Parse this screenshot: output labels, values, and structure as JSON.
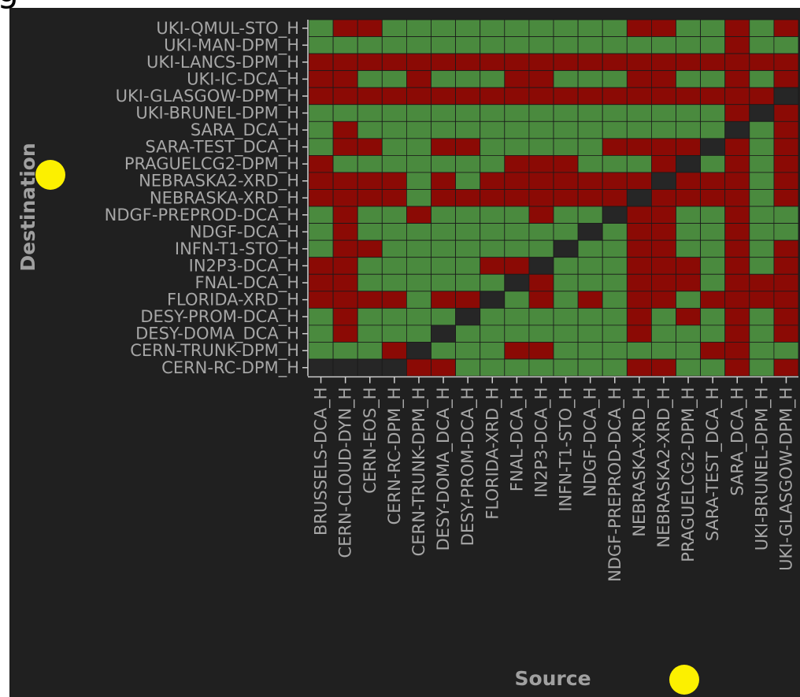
{
  "stray_glyph": "g",
  "colors": {
    "panel_bg": "#202020",
    "ok": "#4a8a3e",
    "fail": "#8b0a05",
    "diag": "#262626",
    "label": "#a6a6a6",
    "axis_title": "#a0a0a0",
    "grid": "#1a1a1a",
    "marker": "#fcf000"
  },
  "markers": [
    "yellow-dot",
    "yellow-dot"
  ],
  "chart_data": {
    "type": "heatmap",
    "xlabel": "Source",
    "ylabel": "Destination",
    "legend": "none",
    "value_legend": {
      "1": "ok (green)",
      "0": "failed (red)",
      "-1": "no test (dark)"
    },
    "x": [
      "BRUSSELS-DCA_H",
      "CERN-CLOUD-DYN_H",
      "CERN-EOS_H",
      "CERN-RC-DPM_H",
      "CERN-TRUNK-DPM_H",
      "DESY-DOMA_DCA_H",
      "DESY-PROM-DCA_H",
      "FLORIDA-XRD_H",
      "FNAL-DCA_H",
      "IN2P3-DCA_H",
      "INFN-T1-STO_H",
      "NDGF-DCA_H",
      "NDGF-PREPROD-DCA_H",
      "NEBRASKA-XRD_H",
      "NEBRASKA2-XRD_H",
      "PRAGUELCG2-DPM_H",
      "SARA-TEST_DCA_H",
      "SARA_DCA_H",
      "UKI-BRUNEL-DPM_H",
      "UKI-GLASGOW-DPM_H"
    ],
    "y": [
      "UKI-QMUL-STO_H",
      "UKI-MAN-DPM_H",
      "UKI-LANCS-DPM_H",
      "UKI-IC-DCA_H",
      "UKI-GLASGOW-DPM_H",
      "UKI-BRUNEL-DPM_H",
      "SARA_DCA_H",
      "SARA-TEST_DCA_H",
      "PRAGUELCG2-DPM_H",
      "NEBRASKA2-XRD_H",
      "NEBRASKA-XRD_H",
      "NDGF-PREPROD-DCA_H",
      "NDGF-DCA_H",
      "INFN-T1-STO_H",
      "IN2P3-DCA_H",
      "FNAL-DCA_H",
      "FLORIDA-XRD_H",
      "DESY-PROM-DCA_H",
      "DESY-DOMA_DCA_H",
      "CERN-TRUNK-DPM_H",
      "CERN-RC-DPM_H"
    ],
    "values": [
      [
        1,
        0,
        0,
        1,
        1,
        1,
        1,
        1,
        1,
        1,
        1,
        1,
        1,
        0,
        0,
        1,
        1,
        0,
        1,
        0
      ],
      [
        1,
        1,
        1,
        1,
        1,
        1,
        1,
        1,
        1,
        1,
        1,
        1,
        1,
        1,
        1,
        1,
        1,
        0,
        1,
        1
      ],
      [
        0,
        0,
        0,
        0,
        0,
        0,
        0,
        0,
        0,
        0,
        0,
        0,
        0,
        0,
        0,
        0,
        0,
        0,
        0,
        0
      ],
      [
        0,
        0,
        1,
        1,
        0,
        1,
        1,
        1,
        0,
        0,
        1,
        1,
        1,
        0,
        0,
        1,
        1,
        0,
        1,
        0
      ],
      [
        0,
        0,
        0,
        0,
        0,
        0,
        0,
        0,
        0,
        0,
        0,
        0,
        0,
        0,
        0,
        0,
        0,
        0,
        0,
        -1
      ],
      [
        1,
        1,
        1,
        1,
        1,
        1,
        1,
        1,
        1,
        1,
        1,
        1,
        1,
        1,
        1,
        1,
        1,
        0,
        -1,
        0
      ],
      [
        1,
        0,
        1,
        1,
        1,
        1,
        1,
        1,
        1,
        1,
        1,
        1,
        1,
        1,
        1,
        1,
        1,
        -1,
        1,
        0
      ],
      [
        1,
        0,
        0,
        1,
        1,
        0,
        0,
        1,
        1,
        1,
        1,
        1,
        0,
        0,
        0,
        0,
        -1,
        0,
        1,
        0
      ],
      [
        0,
        1,
        1,
        1,
        1,
        1,
        1,
        1,
        0,
        0,
        0,
        1,
        1,
        1,
        0,
        -1,
        1,
        0,
        1,
        0
      ],
      [
        0,
        0,
        0,
        0,
        1,
        0,
        1,
        0,
        0,
        0,
        0,
        0,
        0,
        0,
        -1,
        0,
        0,
        0,
        1,
        0
      ],
      [
        0,
        0,
        0,
        0,
        1,
        0,
        0,
        0,
        0,
        0,
        0,
        0,
        0,
        -1,
        0,
        0,
        0,
        0,
        1,
        0
      ],
      [
        1,
        0,
        1,
        1,
        0,
        1,
        1,
        1,
        1,
        0,
        1,
        1,
        -1,
        0,
        0,
        1,
        1,
        0,
        1,
        1
      ],
      [
        1,
        0,
        1,
        1,
        1,
        1,
        1,
        1,
        1,
        1,
        1,
        -1,
        1,
        0,
        0,
        1,
        1,
        0,
        1,
        1
      ],
      [
        1,
        0,
        0,
        1,
        1,
        1,
        1,
        1,
        1,
        1,
        -1,
        1,
        1,
        0,
        0,
        1,
        1,
        0,
        1,
        0
      ],
      [
        0,
        0,
        1,
        1,
        1,
        1,
        1,
        0,
        0,
        -1,
        1,
        1,
        1,
        0,
        0,
        0,
        1,
        0,
        1,
        0
      ],
      [
        0,
        0,
        1,
        1,
        1,
        1,
        1,
        1,
        -1,
        0,
        1,
        1,
        1,
        0,
        0,
        0,
        1,
        0,
        0,
        0
      ],
      [
        0,
        0,
        0,
        0,
        1,
        0,
        0,
        -1,
        1,
        0,
        1,
        0,
        1,
        0,
        0,
        1,
        0,
        0,
        0,
        0
      ],
      [
        1,
        0,
        1,
        1,
        1,
        1,
        -1,
        1,
        1,
        1,
        1,
        1,
        1,
        0,
        1,
        0,
        1,
        0,
        1,
        0
      ],
      [
        1,
        0,
        1,
        1,
        1,
        -1,
        1,
        1,
        1,
        1,
        1,
        1,
        1,
        0,
        1,
        1,
        1,
        0,
        1,
        0
      ],
      [
        1,
        1,
        1,
        0,
        -1,
        1,
        1,
        1,
        0,
        0,
        1,
        1,
        1,
        1,
        1,
        1,
        0,
        0,
        1,
        1
      ],
      [
        -1,
        -1,
        -1,
        -1,
        0,
        0,
        1,
        1,
        1,
        1,
        1,
        1,
        1,
        0,
        0,
        1,
        1,
        0,
        1,
        0
      ]
    ]
  }
}
